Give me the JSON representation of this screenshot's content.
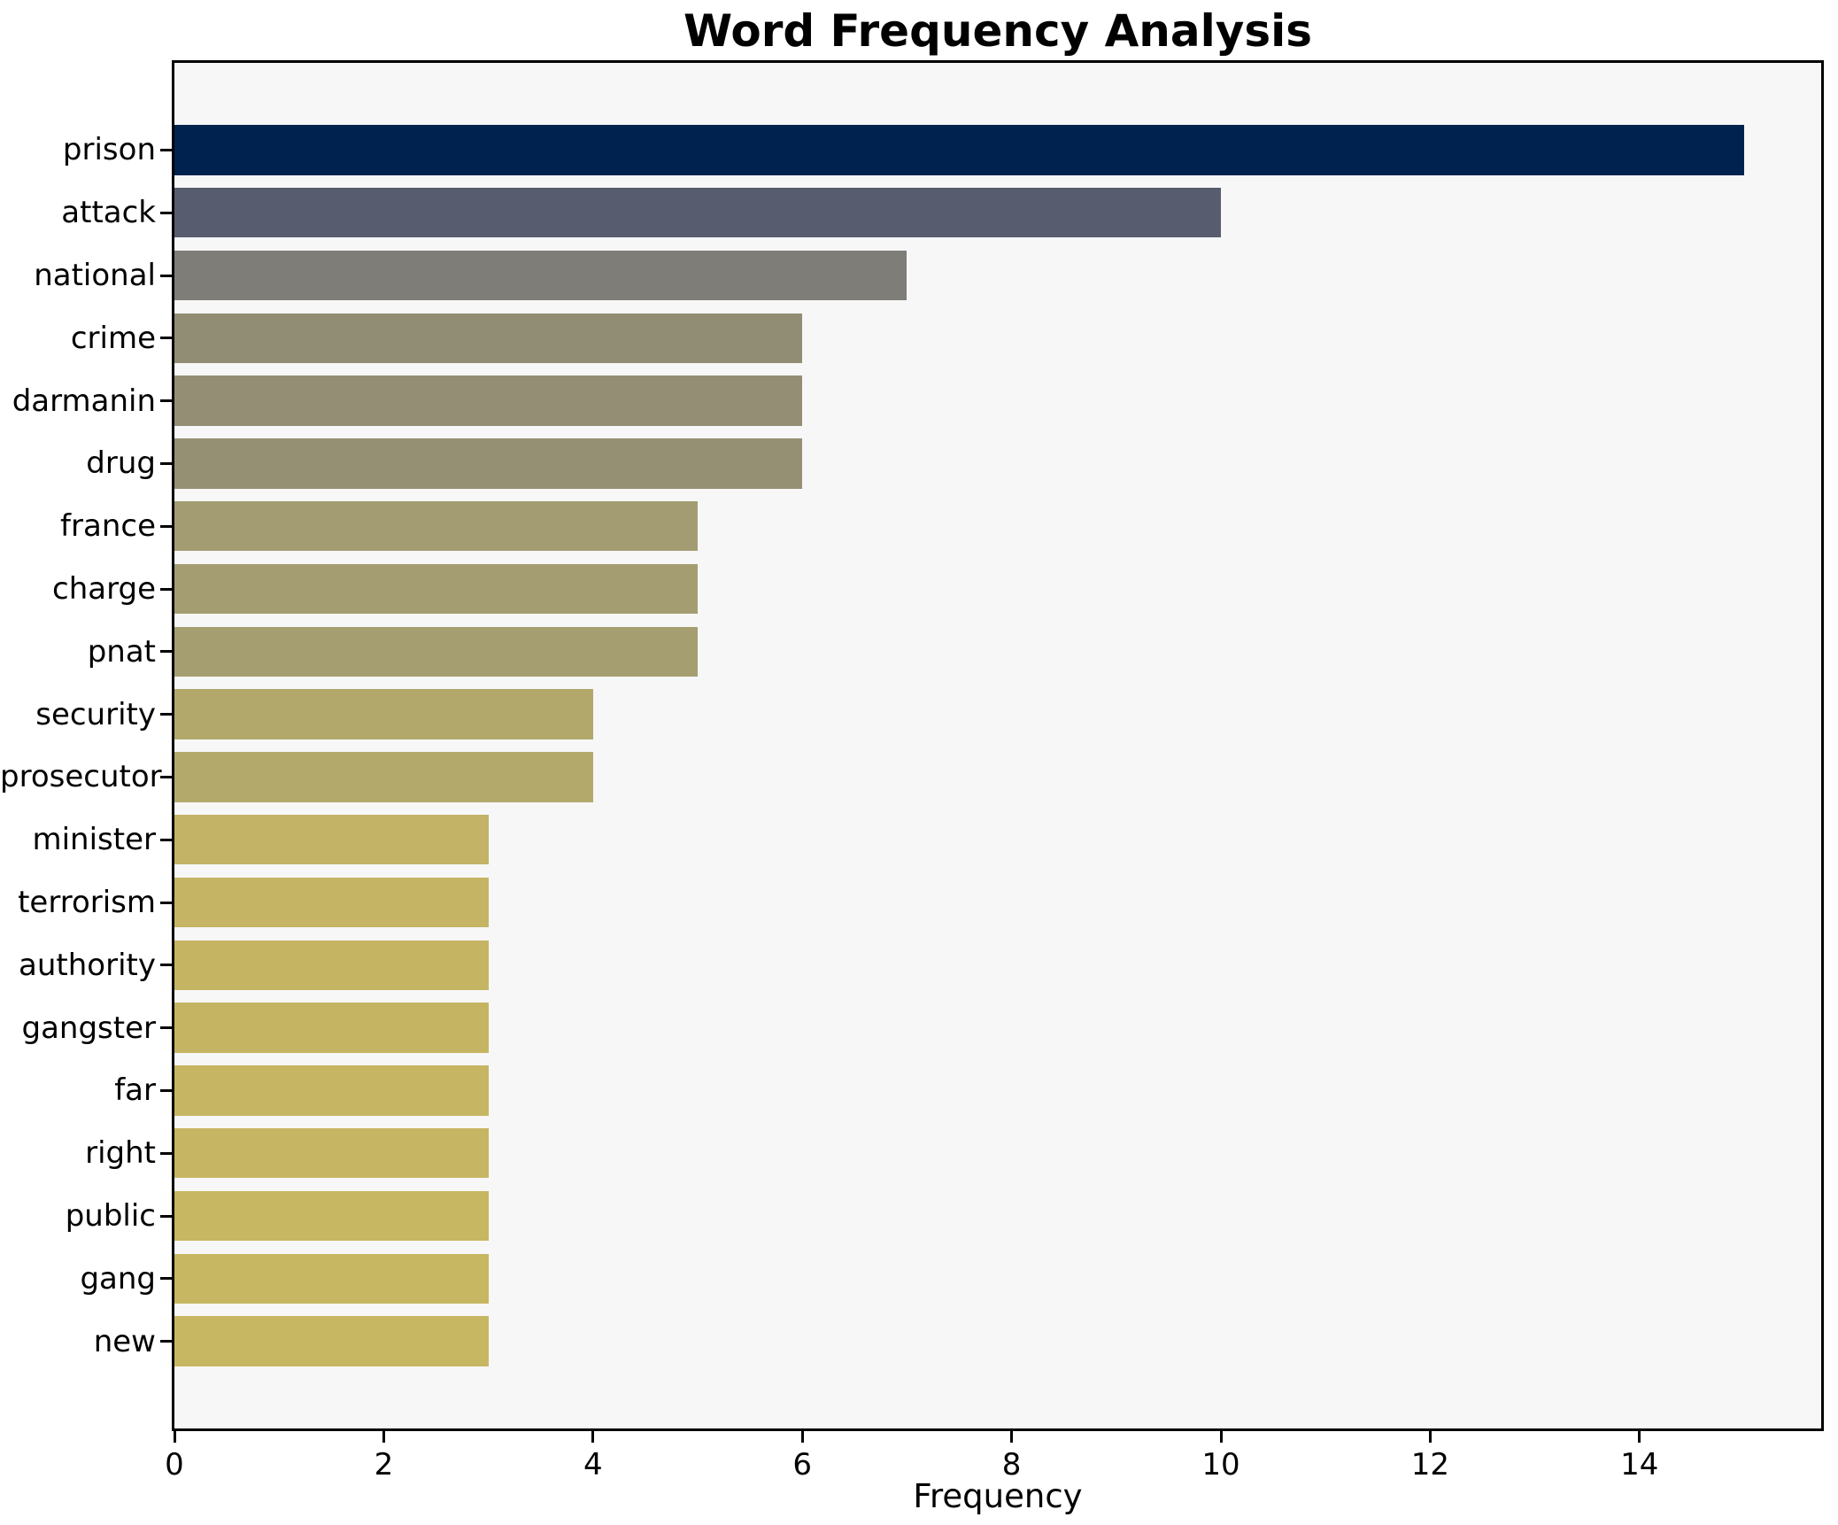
{
  "chart_data": {
    "type": "bar",
    "orientation": "horizontal",
    "title": "Word Frequency Analysis",
    "xlabel": "Frequency",
    "ylabel": "",
    "xlim": [
      0,
      15.75
    ],
    "xticks": [
      0,
      2,
      4,
      6,
      8,
      10,
      12,
      14
    ],
    "grid": false,
    "legend": "none",
    "categories": [
      "prison",
      "attack",
      "national",
      "crime",
      "darmanin",
      "drug",
      "france",
      "charge",
      "pnat",
      "security",
      "prosecutor",
      "minister",
      "terrorism",
      "authority",
      "gangster",
      "far",
      "right",
      "public",
      "gang",
      "new"
    ],
    "values": [
      15,
      10,
      7,
      6,
      6,
      6,
      5,
      5,
      5,
      4,
      4,
      3,
      3,
      3,
      3,
      3,
      3,
      3,
      3,
      3
    ],
    "bar_colors": [
      "#00224e",
      "#575d6e",
      "#7f7d78",
      "#918c74",
      "#938e74",
      "#959074",
      "#a39c72",
      "#a49d71",
      "#a59e70",
      "#b2a86c",
      "#b3a96b",
      "#c2b366",
      "#c4b464",
      "#c5b563",
      "#c5b563",
      "#c6b563",
      "#c6b562",
      "#c7b662",
      "#c7b662",
      "#c8b762"
    ],
    "colors": {
      "plot_bg": "#f7f7f8",
      "figure_bg": "#ffffff",
      "spine": "#000000",
      "text": "#000000"
    }
  }
}
